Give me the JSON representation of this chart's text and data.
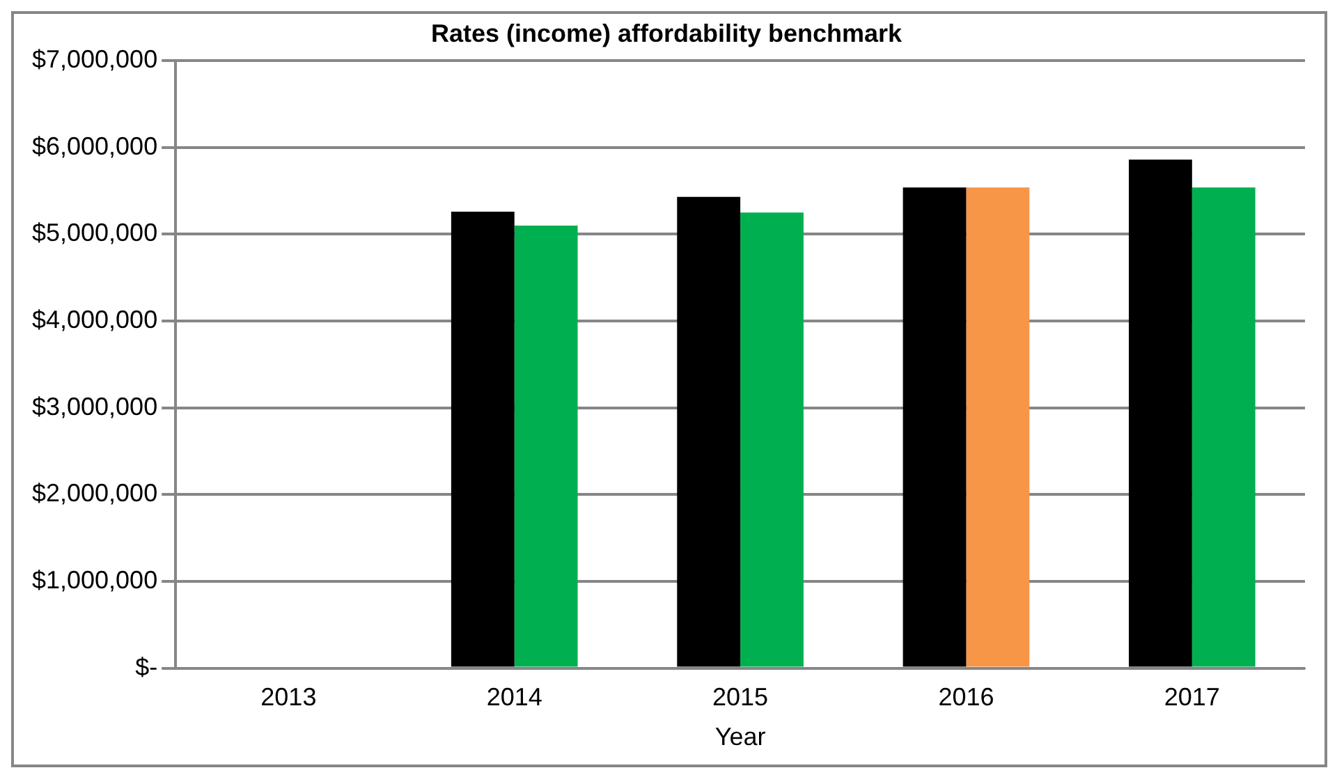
{
  "chart_data": {
    "type": "bar",
    "title": "Rates (income) affordability benchmark",
    "xlabel": "Year",
    "categories": [
      "2013",
      "2014",
      "2015",
      "2016",
      "2017"
    ],
    "series": [
      {
        "color": "#000000",
        "values": [
          null,
          5260000,
          5430000,
          5540000,
          5860000
        ]
      },
      {
        "colors": [
          "#00b050",
          "#00b050",
          "#00b050",
          "#f79646",
          "#00b050"
        ],
        "values": [
          null,
          5100000,
          5250000,
          5540000,
          5540000
        ]
      }
    ],
    "ylim": [
      0,
      7000000
    ],
    "yticks": [
      {
        "value": 0,
        "label": "$-"
      },
      {
        "value": 1000000,
        "label": "$1,000,000"
      },
      {
        "value": 2000000,
        "label": "$2,000,000"
      },
      {
        "value": 3000000,
        "label": "$3,000,000"
      },
      {
        "value": 4000000,
        "label": "$4,000,000"
      },
      {
        "value": 5000000,
        "label": "$5,000,000"
      },
      {
        "value": 6000000,
        "label": "$6,000,000"
      },
      {
        "value": 7000000,
        "label": "$7,000,000"
      }
    ],
    "grid": "y"
  }
}
